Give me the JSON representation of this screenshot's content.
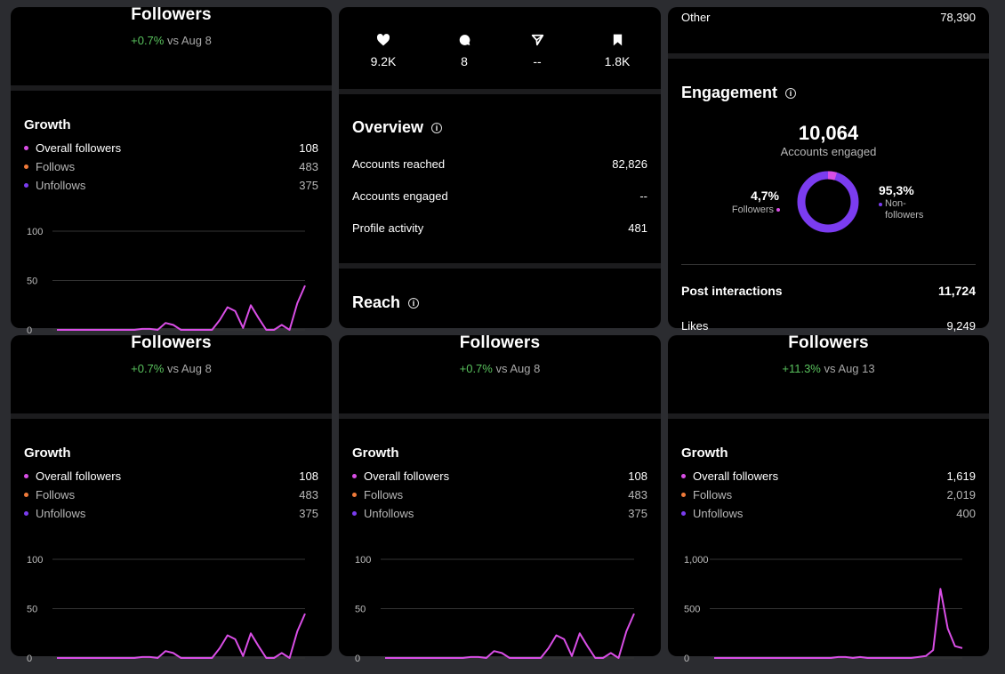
{
  "followers_cards": [
    {
      "title": "Followers",
      "change": "+0.7%",
      "compare": "vs Aug 8",
      "growth_title": "Growth",
      "legend": [
        {
          "label": "Overall followers",
          "value": "108",
          "color": "#d94ee6"
        },
        {
          "label": "Follows",
          "value": "483",
          "color": "#f07a3a"
        },
        {
          "label": "Unfollows",
          "value": "375",
          "color": "#7b3cf0"
        }
      ],
      "chart_data": {
        "type": "line",
        "ticks": [
          "100",
          "50",
          "0"
        ],
        "ylim": [
          0,
          100
        ],
        "values": [
          0,
          0,
          0,
          0,
          0,
          0,
          0,
          0,
          0,
          0,
          0,
          1,
          1,
          0,
          7,
          5,
          0,
          0,
          0,
          0,
          0,
          10,
          23,
          19,
          2,
          25,
          12,
          0,
          0,
          5,
          0,
          27,
          45
        ]
      }
    },
    {
      "title": "Followers",
      "change": "+0.7%",
      "compare": "vs Aug 8",
      "growth_title": "Growth",
      "legend": [
        {
          "label": "Overall followers",
          "value": "108",
          "color": "#d94ee6"
        },
        {
          "label": "Follows",
          "value": "483",
          "color": "#f07a3a"
        },
        {
          "label": "Unfollows",
          "value": "375",
          "color": "#7b3cf0"
        }
      ],
      "chart_data": {
        "type": "line",
        "ticks": [
          "100",
          "50",
          "0"
        ],
        "ylim": [
          0,
          100
        ],
        "values": [
          0,
          0,
          0,
          0,
          0,
          0,
          0,
          0,
          0,
          0,
          0,
          1,
          1,
          0,
          7,
          5,
          0,
          0,
          0,
          0,
          0,
          10,
          23,
          19,
          2,
          25,
          12,
          0,
          0,
          5,
          0,
          27,
          45
        ]
      }
    },
    {
      "title": "Followers",
      "change": "+0.7%",
      "compare": "vs Aug 8",
      "growth_title": "Growth",
      "legend": [
        {
          "label": "Overall followers",
          "value": "108",
          "color": "#d94ee6"
        },
        {
          "label": "Follows",
          "value": "483",
          "color": "#f07a3a"
        },
        {
          "label": "Unfollows",
          "value": "375",
          "color": "#7b3cf0"
        }
      ],
      "chart_data": {
        "type": "line",
        "ticks": [
          "100",
          "50",
          "0"
        ],
        "ylim": [
          0,
          100
        ],
        "values": [
          0,
          0,
          0,
          0,
          0,
          0,
          0,
          0,
          0,
          0,
          0,
          1,
          1,
          0,
          7,
          5,
          0,
          0,
          0,
          0,
          0,
          10,
          23,
          19,
          2,
          25,
          12,
          0,
          0,
          5,
          0,
          27,
          45
        ]
      }
    },
    {
      "title": "Followers",
      "change": "+11.3%",
      "compare": "vs Aug 13",
      "growth_title": "Growth",
      "legend": [
        {
          "label": "Overall followers",
          "value": "1,619",
          "color": "#d94ee6"
        },
        {
          "label": "Follows",
          "value": "2,019",
          "color": "#f07a3a"
        },
        {
          "label": "Unfollows",
          "value": "400",
          "color": "#7b3cf0"
        }
      ],
      "chart_data": {
        "type": "line",
        "ticks": [
          "1,000",
          "500",
          "0"
        ],
        "ylim": [
          0,
          1000
        ],
        "values": [
          0,
          0,
          0,
          0,
          0,
          0,
          0,
          0,
          0,
          0,
          0,
          0,
          0,
          0,
          0,
          0,
          0,
          10,
          10,
          0,
          10,
          0,
          0,
          0,
          0,
          0,
          0,
          0,
          10,
          20,
          80,
          700,
          300,
          120,
          100
        ]
      }
    }
  ],
  "post": {
    "stats": [
      {
        "icon": "heart-icon",
        "value": "9.2K"
      },
      {
        "icon": "comment-icon",
        "value": "8"
      },
      {
        "icon": "share-icon",
        "value": "--"
      },
      {
        "icon": "save-icon",
        "value": "1.8K"
      }
    ],
    "overview_title": "Overview",
    "overview": [
      {
        "label": "Accounts reached",
        "value": "82,826"
      },
      {
        "label": "Accounts engaged",
        "value": "--"
      },
      {
        "label": "Profile activity",
        "value": "481"
      }
    ],
    "reach_title": "Reach"
  },
  "engagement": {
    "other_label": "Other",
    "other_value": "78,390",
    "title": "Engagement",
    "total": "10,064",
    "total_label": "Accounts engaged",
    "followers_pct": "4,7%",
    "followers_label": "Followers",
    "followers_fraction": 0.047,
    "non_pct": "95,3%",
    "non_label_1": "Non-",
    "non_label_2": "followers",
    "followers_color": "#d94ee6",
    "non_color": "#7b3cf0",
    "interactions_label": "Post interactions",
    "interactions_value": "11,724",
    "likes_label": "Likes",
    "likes_value": "9,249"
  }
}
